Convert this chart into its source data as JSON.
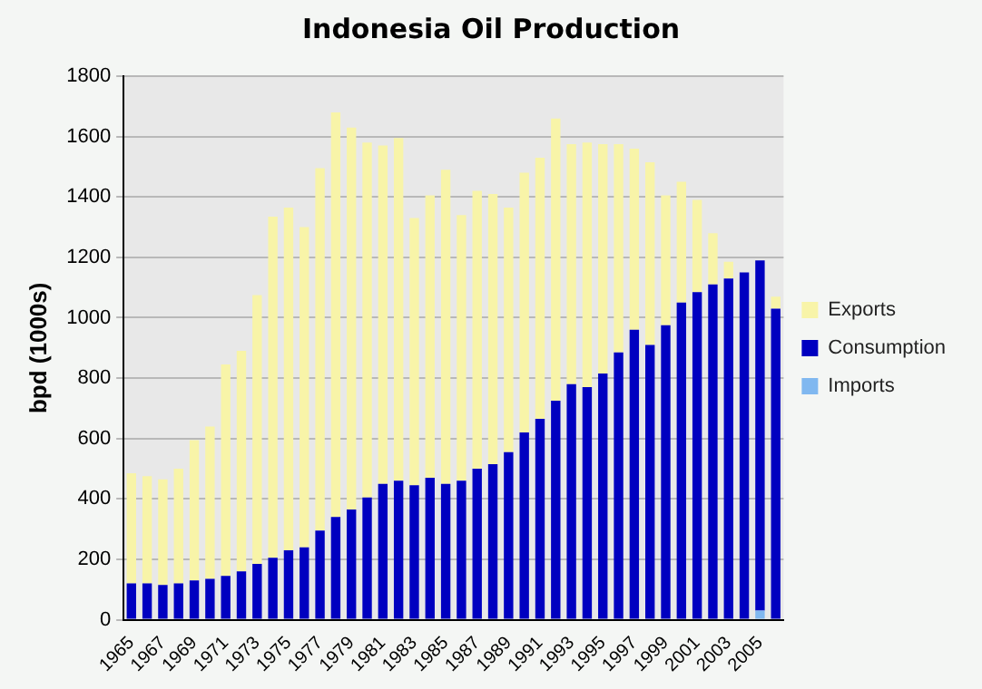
{
  "chart_data": {
    "type": "bar",
    "title": "Indonesia Oil Production",
    "ylabel": "bpd (1000s)",
    "categories": [
      "1965",
      null,
      "1967",
      null,
      "1969",
      null,
      "1971",
      null,
      "1973",
      null,
      "1975",
      null,
      "1977",
      null,
      "1979",
      null,
      "1981",
      null,
      "1983",
      null,
      "1985",
      null,
      "1987",
      null,
      "1989",
      null,
      "1991",
      null,
      "1993",
      null,
      "1995",
      null,
      "1997",
      null,
      "1999",
      null,
      "2001",
      null,
      "2003",
      null,
      "2005",
      null
    ],
    "stacked": true,
    "series": [
      {
        "name": "Imports",
        "color": "#80b8f0",
        "values": [
          0,
          0,
          0,
          0,
          0,
          0,
          0,
          0,
          0,
          0,
          0,
          0,
          0,
          0,
          0,
          0,
          0,
          0,
          0,
          0,
          0,
          0,
          0,
          0,
          0,
          0,
          0,
          0,
          0,
          0,
          0,
          0,
          0,
          0,
          0,
          0,
          0,
          0,
          0,
          0,
          30,
          0
        ]
      },
      {
        "name": "Consumption",
        "color": "#0000c0",
        "values": [
          120,
          120,
          115,
          120,
          130,
          135,
          145,
          160,
          185,
          205,
          230,
          240,
          295,
          340,
          365,
          405,
          450,
          460,
          445,
          470,
          450,
          460,
          500,
          515,
          555,
          620,
          665,
          725,
          780,
          770,
          815,
          885,
          960,
          910,
          975,
          1050,
          1085,
          1110,
          1130,
          1150,
          1160,
          1030
        ]
      },
      {
        "name": "Exports",
        "color": "#f8f4a8",
        "values": [
          365,
          355,
          350,
          380,
          465,
          505,
          700,
          730,
          890,
          1130,
          1135,
          1060,
          1200,
          1340,
          1265,
          1175,
          1120,
          1135,
          885,
          935,
          1040,
          880,
          920,
          895,
          810,
          860,
          865,
          935,
          795,
          810,
          760,
          690,
          600,
          605,
          430,
          400,
          305,
          170,
          55,
          0,
          0,
          40
        ]
      }
    ],
    "ylim": [
      0,
      1800
    ],
    "yticks": [
      0,
      200,
      400,
      600,
      800,
      1000,
      1200,
      1400,
      1600,
      1800
    ],
    "grid": "y",
    "legend": "right"
  }
}
